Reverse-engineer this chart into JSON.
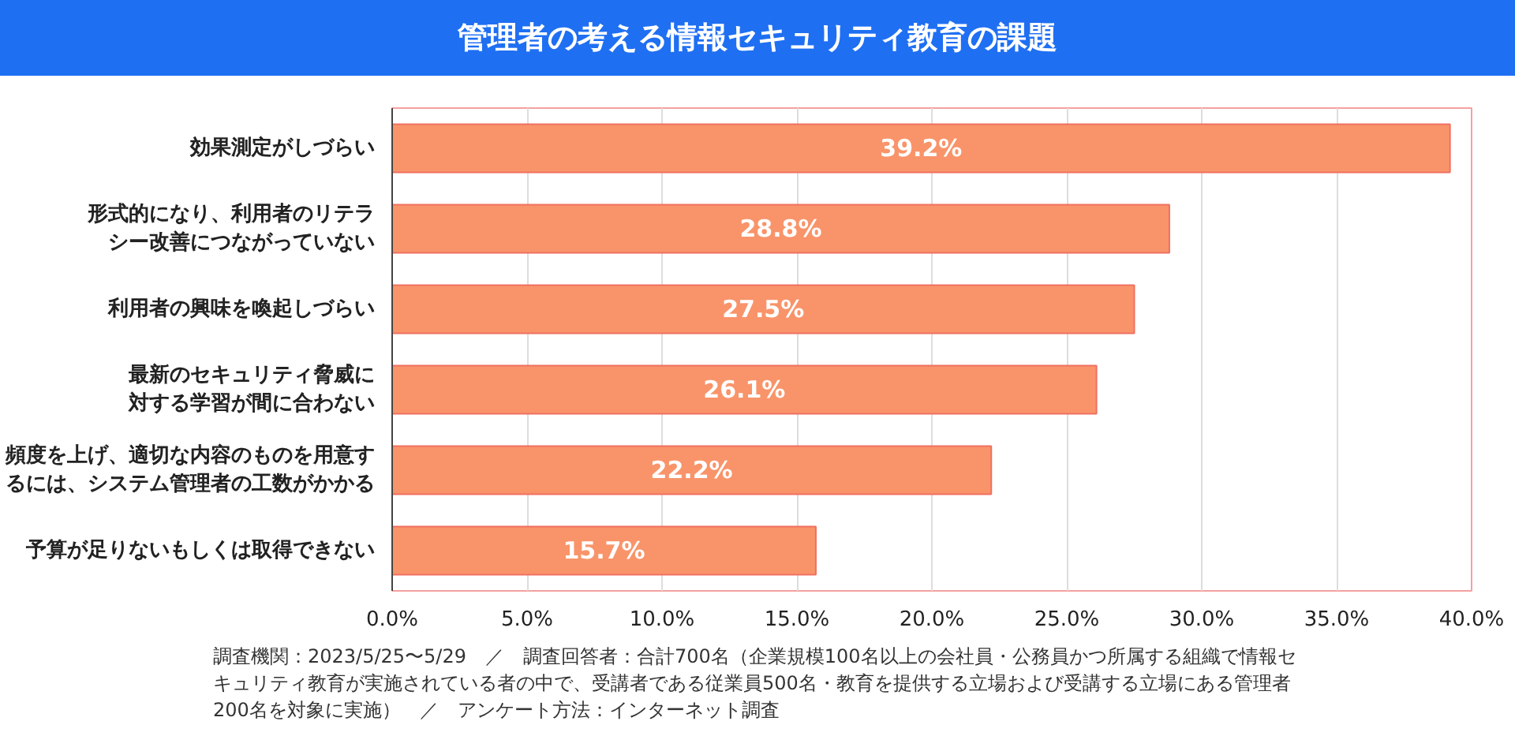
{
  "chart_data": {
    "type": "bar",
    "orientation": "horizontal",
    "title": "管理者の考える情報セキュリティ教育の課題",
    "categories": [
      "効果測定がしづらい",
      "形式的になり、利用者のリテラシー改善につながっていない",
      "利用者の興味を喚起しづらい",
      "最新のセキュリティ脅威に対する学習が間に合わない",
      "頻度を上げ、適切な内容のものを用意するには、システム管理者の工数がかかる",
      "予算が足りないもしくは取得できない"
    ],
    "values": [
      39.2,
      28.8,
      27.5,
      26.1,
      22.2,
      15.7
    ],
    "value_labels": [
      "39.2%",
      "28.8%",
      "27.5%",
      "26.1%",
      "22.2%",
      "15.7%"
    ],
    "color": "#f9946a",
    "xlim": [
      0,
      40
    ],
    "xticks": [
      {
        "value": 0,
        "label": "0.0%"
      },
      {
        "value": 5,
        "label": "5.0%"
      },
      {
        "value": 10,
        "label": "10.0%"
      },
      {
        "value": 15,
        "label": "15.0%"
      },
      {
        "value": 20,
        "label": "20.0%"
      },
      {
        "value": 25,
        "label": "25.0%"
      },
      {
        "value": 30,
        "label": "30.0%"
      },
      {
        "value": 35,
        "label": "35.0%"
      },
      {
        "value": 40,
        "label": "40.0%"
      }
    ],
    "grid": "x",
    "annotations": [
      "調査機関：2023/5/25〜5/29　／　調査回答者：合計700名（企業規模100名以上の会社員・公務員かつ所属する組織で情報セキュリティ教育が実施されている者の中で、受講者である従業員500名・教育を提供する立場および受講する立場にある管理者200名を対象に実施）　／　アンケート方法：インターネット調査"
    ]
  }
}
